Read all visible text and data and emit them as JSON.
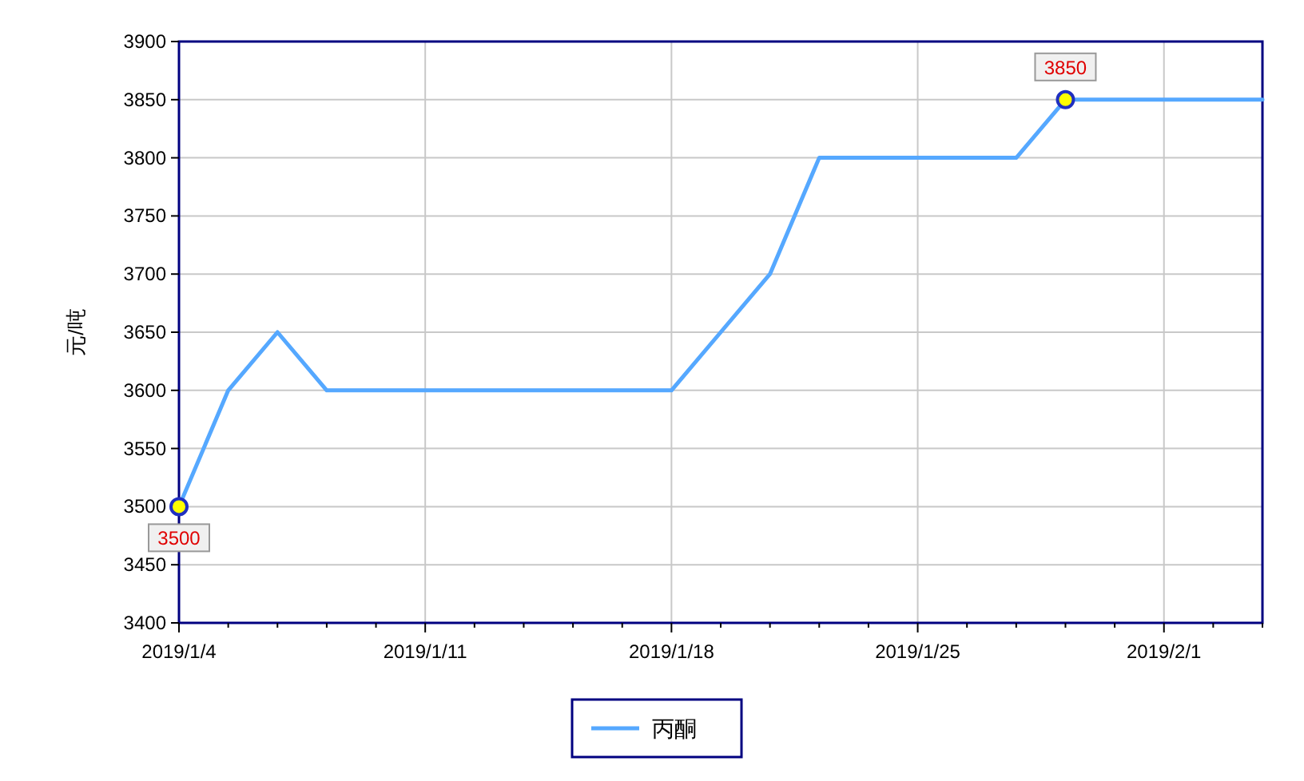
{
  "chart_data": {
    "type": "line",
    "ylabel": "元/吨",
    "categories": [
      "2019/1/4",
      null,
      null,
      null,
      null,
      "2019/1/11",
      null,
      null,
      null,
      null,
      "2019/1/18",
      null,
      null,
      null,
      null,
      "2019/1/25",
      null,
      null,
      null,
      null,
      "2019/2/1",
      null,
      null
    ],
    "series": [
      {
        "name": "丙酮",
        "color": "#55a8ff",
        "values": [
          3500,
          3600,
          3650,
          3600,
          3600,
          3600,
          3600,
          3600,
          3600,
          3600,
          3600,
          3650,
          3700,
          3800,
          3800,
          3800,
          3800,
          3800,
          3850,
          3850,
          3850,
          3850,
          3850
        ],
        "value_labels": [
          "3500",
          null,
          null,
          null,
          null,
          null,
          null,
          null,
          null,
          null,
          null,
          null,
          null,
          null,
          null,
          null,
          null,
          null,
          "3850",
          null,
          null,
          null,
          null
        ]
      }
    ],
    "ylim": [
      3400,
      3900
    ],
    "yticks": [
      3400,
      3450,
      3500,
      3550,
      3600,
      3650,
      3700,
      3750,
      3800,
      3850,
      3900
    ],
    "grid": true,
    "legend": "bottom"
  }
}
